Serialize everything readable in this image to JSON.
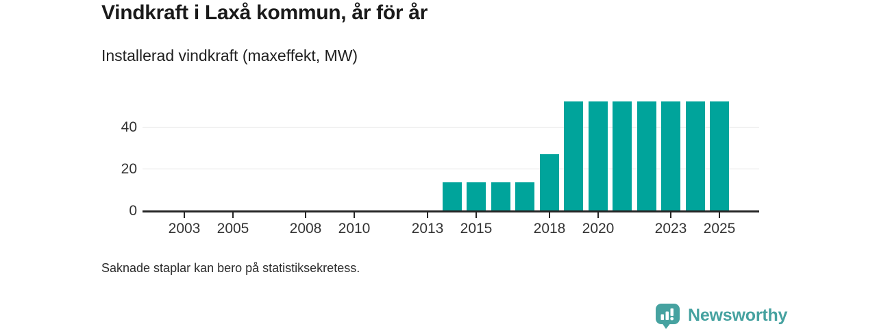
{
  "header": {
    "title": "Vindkraft i Laxå kommun, år för år",
    "subtitle": "Installerad vindkraft (maxeffekt, MW)"
  },
  "footer": {
    "note": "Saknade staplar kan bero på statistiksekretess."
  },
  "branding": {
    "name": "Newsworthy",
    "icon": "newsworthy-bar-chart-badge-icon",
    "accent_color": "#46a2a0"
  },
  "chart_data": {
    "type": "bar",
    "title": "Vindkraft i Laxå kommun, år för år",
    "subtitle": "Installerad vindkraft (maxeffekt, MW)",
    "xlabel": "",
    "ylabel": "MW",
    "x": [
      2002,
      2003,
      2004,
      2005,
      2006,
      2007,
      2008,
      2009,
      2010,
      2011,
      2012,
      2013,
      2014,
      2015,
      2016,
      2017,
      2018,
      2019,
      2020,
      2021,
      2022,
      2023,
      2024,
      2025
    ],
    "values": [
      null,
      null,
      null,
      null,
      null,
      null,
      null,
      null,
      null,
      null,
      null,
      null,
      13.5,
      13.5,
      13.5,
      13.5,
      27,
      52,
      52,
      52,
      52,
      52,
      52,
      52
    ],
    "missing_values_meaning": "Saknade staplar kan bero på statistiksekretess.",
    "x_tick_labels": [
      "2003",
      "2005",
      "2008",
      "2010",
      "2013",
      "2015",
      "2018",
      "2020",
      "2023",
      "2025"
    ],
    "y_ticks": [
      0,
      20,
      40
    ],
    "ylim": [
      0,
      55
    ],
    "bar_color": "#00a49b",
    "grid": "horizontal",
    "gridline_color": "#e4e4e4",
    "legend": "none"
  }
}
